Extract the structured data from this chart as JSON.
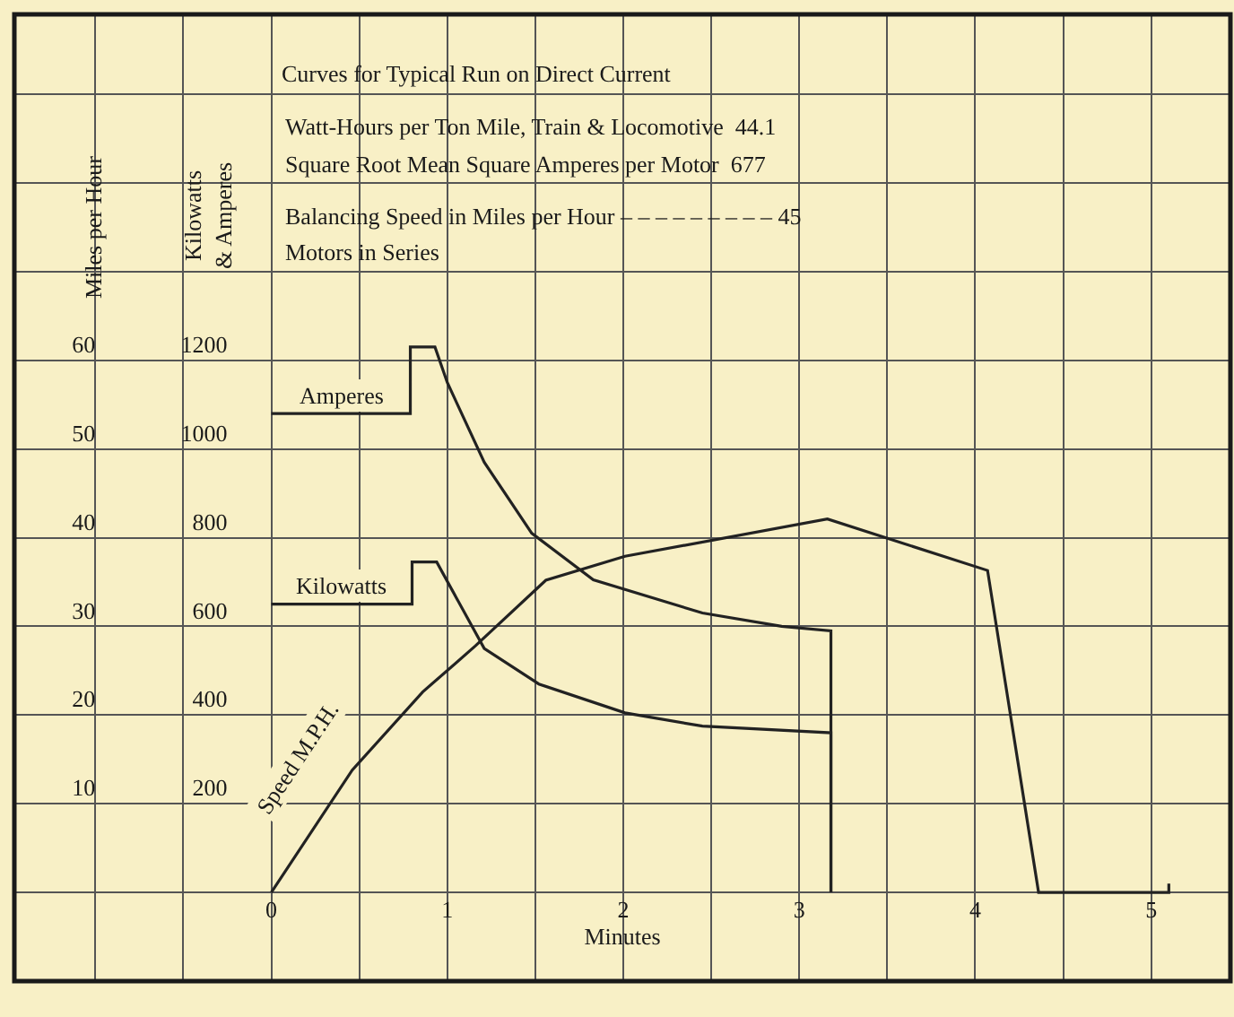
{
  "chart_data": {
    "type": "line",
    "title": "Curves for Typical Run on Direct Current",
    "xlabel": "Minutes",
    "ylabel": "Miles per Hour",
    "y2label": "Kilowatts\n& Amperes",
    "annotations": [
      "Watt-Hours per Ton Mile, Train & Locomotive  44.1",
      "Square Root Mean Square Amperes per Motor  677",
      "Balancing Speed in Miles per Hour – – – – – – – – – 45",
      "Motors in Series"
    ],
    "series": [
      {
        "name": "Amperes",
        "color": "#222222",
        "axis": "y2",
        "x": [
          0,
          0.79,
          0.79,
          0.93,
          1.0,
          1.21,
          1.48,
          1.83,
          2.45,
          2.9,
          3.18,
          3.18
        ],
        "values": [
          1080,
          1080,
          1230,
          1230,
          1150,
          970,
          810,
          705,
          630,
          600,
          590,
          0
        ]
      },
      {
        "name": "Kilowatts",
        "color": "#222222",
        "axis": "y2",
        "x": [
          0,
          0.8,
          0.8,
          0.94,
          1.21,
          1.52,
          2.01,
          2.45,
          3.18,
          3.18
        ],
        "values": [
          650,
          650,
          745,
          745,
          550,
          470,
          405,
          375,
          360,
          0
        ]
      },
      {
        "name": "Speed M.P.H.",
        "color": "#222222",
        "x": [
          0,
          0.46,
          0.86,
          1.16,
          1.56,
          2.01,
          3.16,
          4.07,
          4.36,
          5.1,
          5.1
        ],
        "values": [
          0,
          13.8,
          22.6,
          27.8,
          35.2,
          37.9,
          42.1,
          36.3,
          0,
          0,
          1
        ]
      }
    ],
    "xlim": [
      -1.46,
      5.45
    ],
    "xticks": [
      {
        "value": -1,
        "label": null
      },
      {
        "value": -0.5,
        "label": null
      },
      0,
      {
        "value": 0.5,
        "label": null
      },
      1,
      {
        "value": 1.5,
        "label": null
      },
      2,
      {
        "value": 2.5,
        "label": null
      },
      3,
      {
        "value": 3.5,
        "label": null
      },
      4,
      {
        "value": 4.5,
        "label": null
      },
      5
    ],
    "ylim": [
      -10,
      99
    ],
    "yticks": [
      {
        "value": 0,
        "label": null
      },
      10,
      20,
      30,
      40,
      50,
      60,
      {
        "value": 70,
        "label": null
      },
      {
        "value": 80,
        "label": null
      },
      {
        "value": 90,
        "label": null
      }
    ],
    "y2lim": [
      -200,
      1980
    ],
    "y2ticks": [
      200,
      400,
      600,
      800,
      1000,
      1200
    ],
    "grid": true,
    "legend": false,
    "line_style": "solid",
    "marker": "none"
  }
}
